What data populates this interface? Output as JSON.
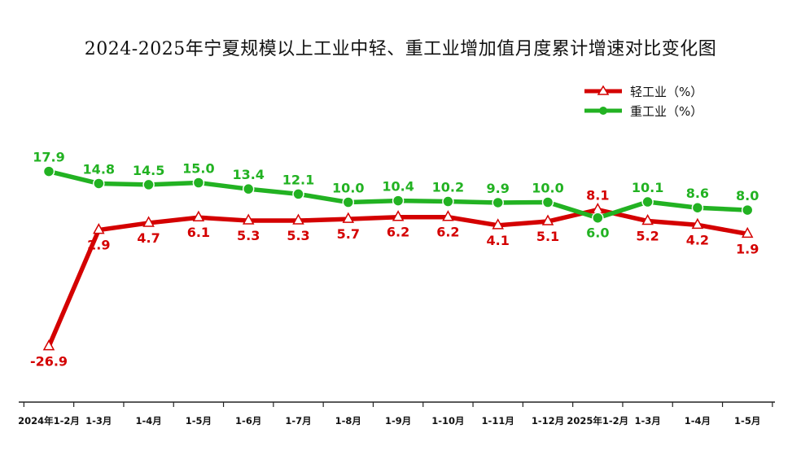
{
  "chart_data": {
    "type": "line",
    "title": "2024-2025年宁夏规模以上工业中轻、重工业增加值月度累计增速对比变化图",
    "categories": [
      "2024年1-2月",
      "1-3月",
      "1-4月",
      "1-5月",
      "1-6月",
      "1-7月",
      "1-8月",
      "1-9月",
      "1-10月",
      "1-11月",
      "1-12月",
      "2025年1-2月",
      "1-3月",
      "1-4月",
      "1-5月"
    ],
    "series": [
      {
        "name": "轻工业（%）",
        "color": "#d40000",
        "marker": "triangle",
        "values": [
          -26.9,
          2.9,
          4.7,
          6.1,
          5.3,
          5.3,
          5.7,
          6.2,
          6.2,
          4.1,
          5.1,
          8.1,
          5.2,
          4.2,
          1.9
        ]
      },
      {
        "name": "重工业（%）",
        "color": "#22b222",
        "marker": "circle",
        "values": [
          17.9,
          14.8,
          14.5,
          15.0,
          13.4,
          12.1,
          10.0,
          10.4,
          10.2,
          9.9,
          10.0,
          6.0,
          10.1,
          8.6,
          8.0
        ]
      }
    ],
    "xlabel": "",
    "ylabel": "",
    "grid": false,
    "legend": "top-right"
  }
}
